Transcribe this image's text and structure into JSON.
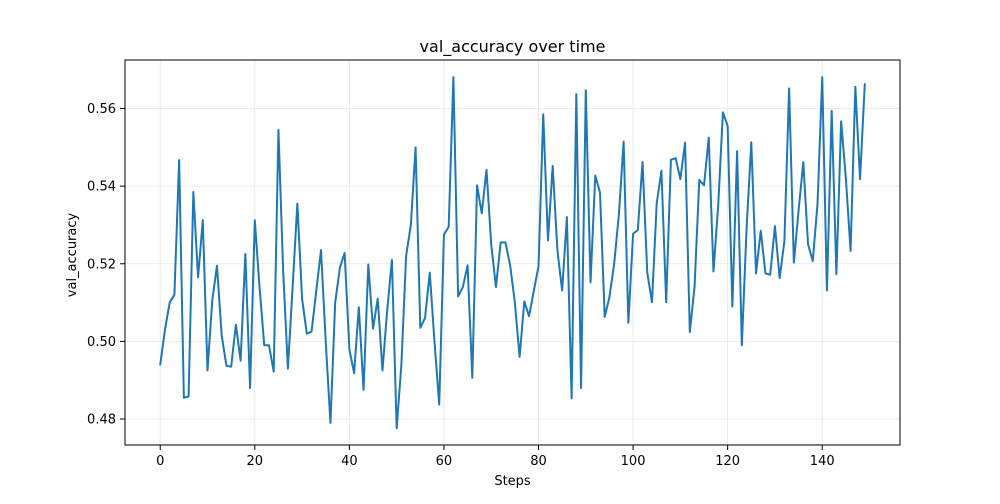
{
  "chart_data": {
    "type": "line",
    "title": "val_accuracy over time",
    "xlabel": "Steps",
    "ylabel": "val_accuracy",
    "xlim": [
      -7.45,
      156.45
    ],
    "ylim": [
      0.4733,
      0.5725
    ],
    "xticks": [
      0,
      20,
      40,
      60,
      80,
      100,
      120,
      140
    ],
    "yticks": [
      0.48,
      0.5,
      0.52,
      0.54,
      0.56
    ],
    "ytick_labels": [
      "0.48",
      "0.50",
      "0.52",
      "0.54",
      "0.56"
    ],
    "grid": true,
    "line_color": "#1f77b4",
    "grid_color": "#e6e6e6",
    "series": [
      {
        "x": [
          0,
          1,
          2,
          3,
          4,
          5,
          6,
          7,
          8,
          9,
          10,
          11,
          12,
          13,
          14,
          15,
          16,
          17,
          18,
          19,
          20,
          21,
          22,
          23,
          24,
          25,
          26,
          27,
          28,
          29,
          30,
          31,
          32,
          33,
          34,
          35,
          36,
          37,
          38,
          39,
          40,
          41,
          42,
          43,
          44,
          45,
          46,
          47,
          48,
          49,
          50,
          51,
          52,
          53,
          54,
          55,
          56,
          57,
          58,
          59,
          60,
          61,
          62,
          63,
          64,
          65,
          66,
          67,
          68,
          69,
          70,
          71,
          72,
          73,
          74,
          75,
          76,
          77,
          78,
          79,
          80,
          81,
          82,
          83,
          84,
          85,
          86,
          87,
          88,
          89,
          90,
          91,
          92,
          93,
          94,
          95,
          96,
          97,
          98,
          99,
          100,
          101,
          102,
          103,
          104,
          105,
          106,
          107,
          108,
          109,
          110,
          111,
          112,
          113,
          114,
          115,
          116,
          117,
          118,
          119,
          120,
          121,
          122,
          123,
          124,
          125,
          126,
          127,
          128,
          129,
          130,
          131,
          132,
          133,
          134,
          135,
          136,
          137,
          138,
          139,
          140,
          141,
          142,
          143,
          144,
          145,
          146,
          147,
          148,
          149
        ],
        "y": [
          0.494,
          0.503,
          0.51,
          0.512,
          0.5467,
          0.4855,
          0.4858,
          0.5385,
          0.5165,
          0.5312,
          0.4925,
          0.5105,
          0.5195,
          0.5015,
          0.4937,
          0.4935,
          0.5043,
          0.495,
          0.5225,
          0.488,
          0.5312,
          0.514,
          0.499,
          0.499,
          0.4922,
          0.5545,
          0.518,
          0.493,
          0.514,
          0.5355,
          0.511,
          0.502,
          0.5025,
          0.513,
          0.5235,
          0.5,
          0.479,
          0.51,
          0.519,
          0.5228,
          0.498,
          0.4918,
          0.5088,
          0.4875,
          0.5198,
          0.5033,
          0.511,
          0.4925,
          0.508,
          0.521,
          0.4776,
          0.494,
          0.522,
          0.53,
          0.55,
          0.5035,
          0.506,
          0.5177,
          0.5,
          0.4837,
          0.5275,
          0.5295,
          0.5681,
          0.5116,
          0.514,
          0.5196,
          0.4906,
          0.5402,
          0.533,
          0.5442,
          0.525,
          0.514,
          0.5255,
          0.5255,
          0.5196,
          0.51,
          0.496,
          0.5103,
          0.5065,
          0.513,
          0.5193,
          0.5585,
          0.526,
          0.5452,
          0.5234,
          0.5131,
          0.532,
          0.4853,
          0.5637,
          0.488,
          0.5647,
          0.5152,
          0.5427,
          0.5384,
          0.5063,
          0.5114,
          0.52,
          0.5327,
          0.5515,
          0.5048,
          0.5277,
          0.5287,
          0.5462,
          0.5177,
          0.5101,
          0.5356,
          0.544,
          0.5101,
          0.5468,
          0.5472,
          0.5418,
          0.5512,
          0.5024,
          0.514,
          0.5416,
          0.5402,
          0.5525,
          0.518,
          0.535,
          0.559,
          0.5555,
          0.509,
          0.549,
          0.499,
          0.529,
          0.5513,
          0.5175,
          0.5285,
          0.5175,
          0.5172,
          0.5297,
          0.5163,
          0.5258,
          0.5652,
          0.5203,
          0.5337,
          0.5462,
          0.525,
          0.5207,
          0.5354,
          0.5681,
          0.5131,
          0.5594,
          0.5173,
          0.5567,
          0.542,
          0.5233,
          0.5656,
          0.5418,
          0.5663
        ]
      }
    ]
  }
}
